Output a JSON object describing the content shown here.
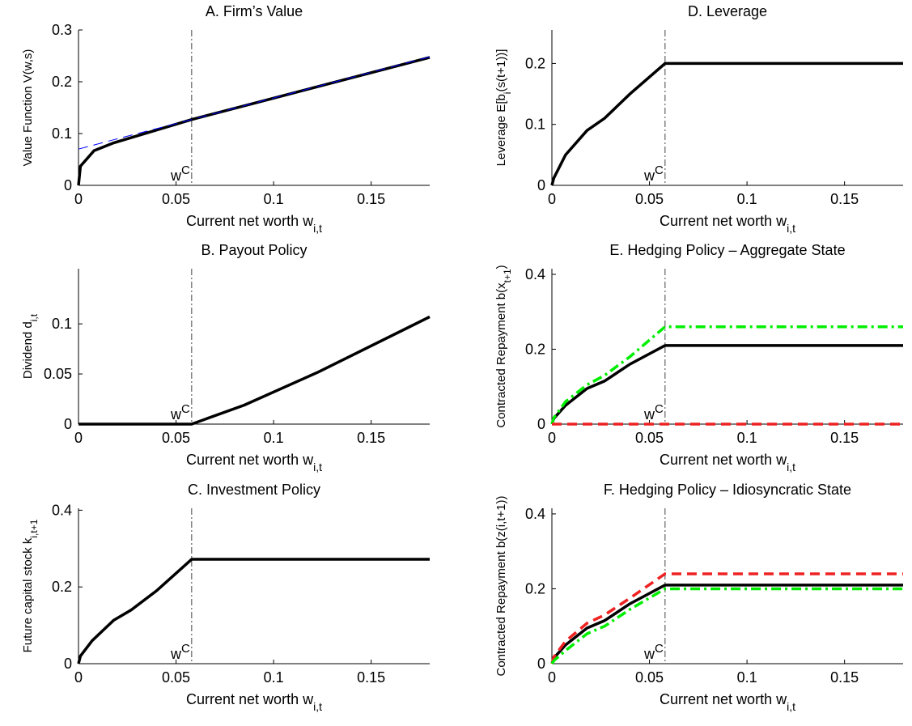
{
  "chart_data": [
    {
      "type": "line",
      "title": "A. Firm’s Value",
      "xlabel": [
        {
          "text": "Current net worth w"
        },
        {
          "sub": "i,t"
        }
      ],
      "ylabel": [
        {
          "text": "Value Function V(w,s)"
        }
      ],
      "annotation": [
        {
          "text": "w"
        },
        {
          "sup": "C"
        }
      ],
      "vline": 0.058,
      "x": [
        0,
        0.001,
        0.008,
        0.018,
        0.058,
        0.18
      ],
      "series": [
        {
          "color": "#000000",
          "dash": "solid",
          "linewidth": 3.5,
          "values": [
            0,
            0.037,
            0.067,
            0.082,
            0.127,
            0.247
          ]
        },
        {
          "color": "#0000ff",
          "dash": "dash",
          "linewidth": 1,
          "values": [
            0.07,
            0.071,
            0.078,
            0.088,
            0.127,
            0.248
          ]
        }
      ],
      "xlim": [
        0,
        0.18
      ],
      "ylim": [
        0,
        0.3
      ],
      "xticks": [
        0,
        0.05,
        0.1,
        0.15
      ],
      "yticks": [
        0,
        0.1,
        0.2,
        0.3
      ]
    },
    {
      "type": "line",
      "title": "B. Payout Policy",
      "xlabel": [
        {
          "text": "Current net worth w"
        },
        {
          "sub": "i,t"
        }
      ],
      "ylabel": [
        {
          "text": "Dividend d"
        },
        {
          "sub": "i,t"
        }
      ],
      "annotation": [
        {
          "text": "w"
        },
        {
          "sup": "C"
        }
      ],
      "vline": 0.058,
      "x": [
        0,
        0.058,
        0.085,
        0.123,
        0.18
      ],
      "series": [
        {
          "color": "#000000",
          "dash": "solid",
          "linewidth": 3.5,
          "values": [
            0,
            0,
            0.019,
            0.052,
            0.107
          ]
        }
      ],
      "xlim": [
        0,
        0.18
      ],
      "ylim": [
        0,
        0.155
      ],
      "xticks": [
        0,
        0.05,
        0.1,
        0.15
      ],
      "yticks": [
        0,
        0.05,
        0.1
      ]
    },
    {
      "type": "line",
      "title": "C. Investment Policy",
      "xlabel": [
        {
          "text": "Current net worth w"
        },
        {
          "sub": "i,t"
        }
      ],
      "ylabel": [
        {
          "text": "Future capital stock k"
        },
        {
          "sub": "i,t+1"
        }
      ],
      "annotation": [
        {
          "text": "w"
        },
        {
          "sup": "C"
        }
      ],
      "vline": 0.058,
      "x": [
        0,
        0.001,
        0.007,
        0.018,
        0.027,
        0.04,
        0.058,
        0.18
      ],
      "series": [
        {
          "color": "#000000",
          "dash": "solid",
          "linewidth": 3.5,
          "values": [
            0,
            0.02,
            0.06,
            0.113,
            0.14,
            0.19,
            0.272,
            0.272
          ]
        }
      ],
      "xlim": [
        0,
        0.18
      ],
      "ylim": [
        0,
        0.405
      ],
      "xticks": [
        0,
        0.05,
        0.1,
        0.15
      ],
      "yticks": [
        0,
        0.2,
        0.4
      ]
    },
    {
      "type": "line",
      "title": "D. Leverage",
      "xlabel": [
        {
          "text": "Current net worth w"
        },
        {
          "sub": "i,t"
        }
      ],
      "ylabel": [
        {
          "text": "Leverage E[b"
        },
        {
          "sub": "i"
        },
        {
          "text": "(s(t+1))]"
        }
      ],
      "annotation": [
        {
          "text": "w"
        },
        {
          "sup": "C"
        }
      ],
      "vline": 0.058,
      "x": [
        0,
        0.001,
        0.007,
        0.018,
        0.027,
        0.04,
        0.058,
        0.18
      ],
      "series": [
        {
          "color": "#000000",
          "dash": "solid",
          "linewidth": 3.5,
          "values": [
            0,
            0.012,
            0.05,
            0.09,
            0.11,
            0.15,
            0.2,
            0.2
          ]
        }
      ],
      "xlim": [
        0,
        0.18
      ],
      "ylim": [
        0,
        0.255
      ],
      "xticks": [
        0,
        0.05,
        0.1,
        0.15
      ],
      "yticks": [
        0,
        0.1,
        0.2
      ]
    },
    {
      "type": "line",
      "title": "E. Hedging Policy – Aggregate State",
      "xlabel": [
        {
          "text": "Current net worth w"
        },
        {
          "sub": "i,t"
        }
      ],
      "ylabel": [
        {
          "text": "Contracted Repayment b(x"
        },
        {
          "sub": "t+1"
        },
        {
          "text": ")"
        }
      ],
      "annotation": [
        {
          "text": "w"
        },
        {
          "sup": "C"
        }
      ],
      "vline": 0.058,
      "x": [
        0,
        0.001,
        0.007,
        0.018,
        0.027,
        0.04,
        0.058,
        0.18
      ],
      "series": [
        {
          "color": "#000000",
          "dash": "solid",
          "linewidth": 3.5,
          "values": [
            0,
            0.015,
            0.05,
            0.095,
            0.115,
            0.16,
            0.21,
            0.21
          ]
        },
        {
          "color": "#00ee00",
          "dash": "dashdot",
          "linewidth": 3.5,
          "values": [
            0,
            0.017,
            0.06,
            0.105,
            0.13,
            0.18,
            0.26,
            0.26
          ]
        },
        {
          "color": "#ee2222",
          "dash": "dash",
          "linewidth": 3.5,
          "values": [
            0,
            0,
            0,
            0,
            0,
            0,
            0,
            0
          ]
        }
      ],
      "xlim": [
        0,
        0.18
      ],
      "ylim": [
        0,
        0.415
      ],
      "xticks": [
        0,
        0.05,
        0.1,
        0.15
      ],
      "yticks": [
        0,
        0.2,
        0.4
      ]
    },
    {
      "type": "line",
      "title": "F. Hedging Policy – Idiosyncratic State",
      "xlabel": [
        {
          "text": "Current net worth w"
        },
        {
          "sub": "i,t"
        }
      ],
      "ylabel": [
        {
          "text": "Contracted Repayment b(z(i,t+1))"
        }
      ],
      "annotation": [
        {
          "text": "w"
        },
        {
          "sup": "C"
        }
      ],
      "vline": 0.058,
      "x": [
        0,
        0.001,
        0.007,
        0.018,
        0.027,
        0.04,
        0.058,
        0.18
      ],
      "series": [
        {
          "color": "#000000",
          "dash": "solid",
          "linewidth": 3.5,
          "values": [
            0,
            0.015,
            0.05,
            0.095,
            0.115,
            0.16,
            0.21,
            0.21
          ]
        },
        {
          "color": "#ee2222",
          "dash": "dash",
          "linewidth": 3.5,
          "values": [
            0,
            0.018,
            0.06,
            0.108,
            0.13,
            0.175,
            0.24,
            0.24
          ]
        },
        {
          "color": "#00ee00",
          "dash": "dashdot",
          "linewidth": 3.5,
          "values": [
            0,
            0.008,
            0.035,
            0.08,
            0.1,
            0.145,
            0.2,
            0.2
          ]
        }
      ],
      "xlim": [
        0,
        0.18
      ],
      "ylim": [
        0,
        0.415
      ],
      "xticks": [
        0,
        0.05,
        0.1,
        0.15
      ],
      "yticks": [
        0,
        0.2,
        0.4
      ]
    }
  ]
}
